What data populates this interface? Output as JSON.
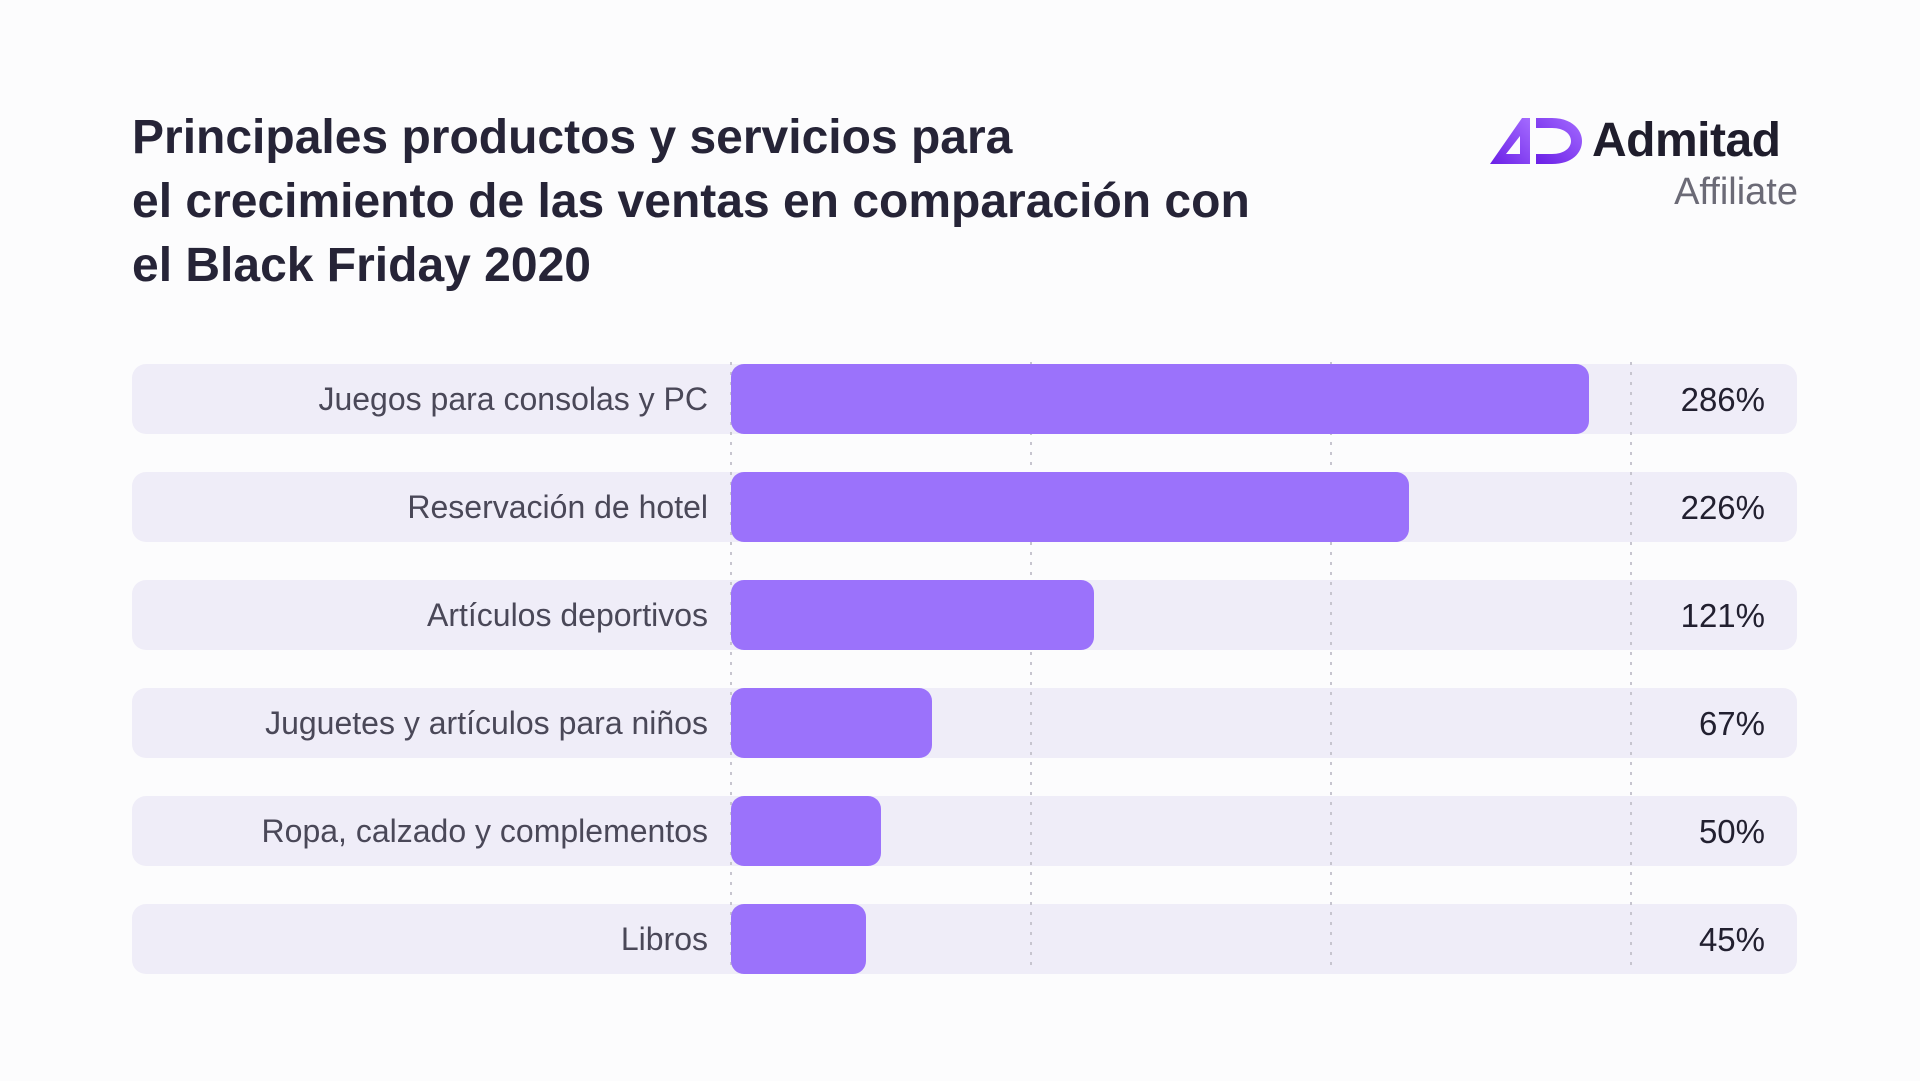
{
  "title_lines": [
    "Principales productos y servicios para",
    "el crecimiento de las ventas en comparación con",
    "el Black Friday 2020"
  ],
  "brand": {
    "name": "Admitad",
    "sub": "Affiliate",
    "logo_icon": "admitad-ad-logo-icon",
    "logo_colors": [
      "#6a1fe6",
      "#a46bff"
    ]
  },
  "colors": {
    "bar": "#9b72fb",
    "track": "#efedf8",
    "grid": "#c7c5cf"
  },
  "chart_data": {
    "type": "bar",
    "orientation": "horizontal",
    "categories": [
      "Juegos para consolas y PC",
      "Reservación de hotel",
      "Artículos deportivos",
      "Juguetes y artículos para niños",
      "Ropa, calzado y complementos",
      "Libros"
    ],
    "values": [
      286,
      226,
      121,
      67,
      50,
      45
    ],
    "value_labels": [
      "286%",
      "226%",
      "121%",
      "67%",
      "50%",
      "45%"
    ],
    "unit": "%",
    "xlim": [
      0,
      300
    ],
    "gridlines": [
      0,
      100,
      200,
      300
    ],
    "grid": true,
    "legend": "none"
  }
}
